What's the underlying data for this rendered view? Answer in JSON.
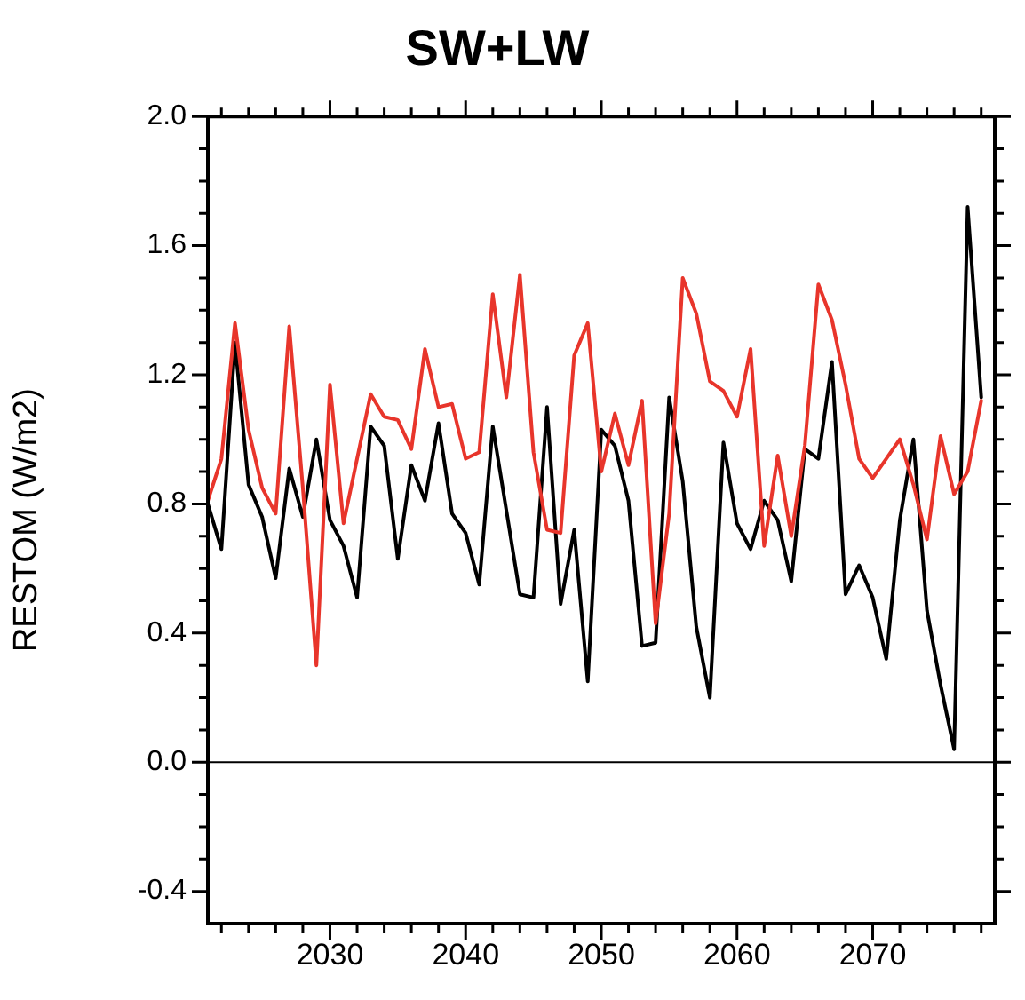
{
  "chart_data": {
    "type": "line",
    "title": "SW+LW",
    "ylabel": "RESTOM (W/m2)",
    "x": [
      2021,
      2022,
      2023,
      2024,
      2025,
      2026,
      2027,
      2028,
      2029,
      2030,
      2031,
      2032,
      2033,
      2034,
      2035,
      2036,
      2037,
      2038,
      2039,
      2040,
      2041,
      2042,
      2043,
      2044,
      2045,
      2046,
      2047,
      2048,
      2049,
      2050,
      2051,
      2052,
      2053,
      2054,
      2055,
      2056,
      2057,
      2058,
      2059,
      2060,
      2061,
      2062,
      2063,
      2064,
      2065,
      2066,
      2067,
      2068,
      2069,
      2070,
      2071,
      2072,
      2073,
      2074,
      2075,
      2076,
      2077,
      2078
    ],
    "series": [
      {
        "color": "#e8352b",
        "values": [
          0.81,
          0.94,
          1.36,
          1.03,
          0.85,
          0.77,
          1.35,
          0.85,
          0.3,
          1.17,
          0.74,
          0.94,
          1.14,
          1.07,
          1.06,
          0.97,
          1.28,
          1.1,
          1.11,
          0.94,
          0.96,
          1.45,
          1.13,
          1.51,
          0.96,
          0.72,
          0.71,
          1.26,
          1.36,
          0.9,
          1.08,
          0.92,
          1.12,
          0.43,
          0.77,
          1.5,
          1.39,
          1.18,
          1.15,
          1.07,
          1.28,
          0.67,
          0.95,
          0.7,
          0.98,
          1.48,
          1.37,
          1.17,
          0.94,
          0.88,
          0.94,
          1.0,
          0.86,
          0.69,
          1.01,
          0.83,
          0.9,
          1.12
        ]
      },
      {
        "color": "#000000",
        "values": [
          0.8,
          0.66,
          1.3,
          0.86,
          0.76,
          0.57,
          0.91,
          0.76,
          1.0,
          0.75,
          0.67,
          0.51,
          1.04,
          0.98,
          0.63,
          0.92,
          0.81,
          1.05,
          0.77,
          0.71,
          0.55,
          1.04,
          0.78,
          0.52,
          0.51,
          1.1,
          0.49,
          0.72,
          0.25,
          1.03,
          0.98,
          0.81,
          0.36,
          0.37,
          1.13,
          0.87,
          0.42,
          0.2,
          0.99,
          0.74,
          0.66,
          0.81,
          0.75,
          0.56,
          0.97,
          0.94,
          1.24,
          0.52,
          0.61,
          0.51,
          0.32,
          0.75,
          1.0,
          0.47,
          0.24,
          0.04,
          1.72,
          1.13
        ]
      }
    ],
    "xlim": [
      2021,
      2079
    ],
    "xticks": [
      {
        "value": 2022,
        "label": null
      },
      {
        "value": 2024,
        "label": null
      },
      {
        "value": 2026,
        "label": null
      },
      {
        "value": 2028,
        "label": null
      },
      2030,
      {
        "value": 2032,
        "label": null
      },
      {
        "value": 2034,
        "label": null
      },
      {
        "value": 2036,
        "label": null
      },
      {
        "value": 2038,
        "label": null
      },
      2040,
      {
        "value": 2042,
        "label": null
      },
      {
        "value": 2044,
        "label": null
      },
      {
        "value": 2046,
        "label": null
      },
      {
        "value": 2048,
        "label": null
      },
      2050,
      {
        "value": 2052,
        "label": null
      },
      {
        "value": 2054,
        "label": null
      },
      {
        "value": 2056,
        "label": null
      },
      {
        "value": 2058,
        "label": null
      },
      2060,
      {
        "value": 2062,
        "label": null
      },
      {
        "value": 2064,
        "label": null
      },
      {
        "value": 2066,
        "label": null
      },
      {
        "value": 2068,
        "label": null
      },
      2070,
      {
        "value": 2072,
        "label": null
      },
      {
        "value": 2074,
        "label": null
      },
      {
        "value": 2076,
        "label": null
      },
      {
        "value": 2078,
        "label": null
      }
    ],
    "ylim": [
      -0.5,
      2.0
    ],
    "yticks": [
      {
        "value": -0.4,
        "label": "-0.4"
      },
      {
        "value": -0.3,
        "label": null
      },
      {
        "value": -0.2,
        "label": null
      },
      {
        "value": -0.1,
        "label": null
      },
      {
        "value": 0,
        "label": "0.0"
      },
      {
        "value": 0.1,
        "label": null
      },
      {
        "value": 0.2,
        "label": null
      },
      {
        "value": 0.3,
        "label": null
      },
      {
        "value": 0.4,
        "label": "0.4"
      },
      {
        "value": 0.5,
        "label": null
      },
      {
        "value": 0.6,
        "label": null
      },
      {
        "value": 0.7,
        "label": null
      },
      {
        "value": 0.8,
        "label": "0.8"
      },
      {
        "value": 0.9,
        "label": null
      },
      {
        "value": 1.0,
        "label": null
      },
      {
        "value": 1.1,
        "label": null
      },
      {
        "value": 1.2,
        "label": "1.2"
      },
      {
        "value": 1.3,
        "label": null
      },
      {
        "value": 1.4,
        "label": null
      },
      {
        "value": 1.5,
        "label": null
      },
      {
        "value": 1.6,
        "label": "1.6"
      },
      {
        "value": 1.7,
        "label": null
      },
      {
        "value": 1.8,
        "label": null
      },
      {
        "value": 1.9,
        "label": null
      },
      {
        "value": 2.0,
        "label": "2.0"
      }
    ],
    "ref_lines": [
      {
        "axis": "y",
        "value": 0,
        "color": "#000000"
      }
    ],
    "grid": false,
    "legend": false,
    "marker": "none",
    "line_style": "solid"
  }
}
